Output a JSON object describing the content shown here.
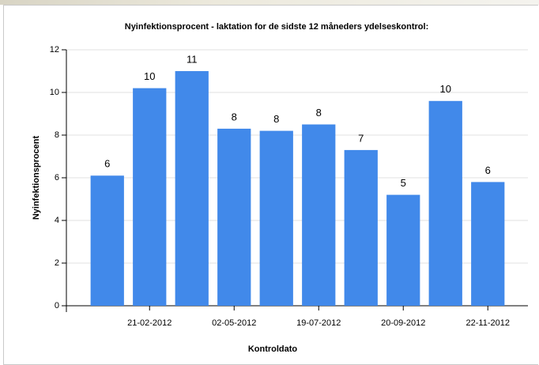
{
  "chart_data": {
    "type": "bar",
    "title": "Nyinfektionsprocent - laktation for de sidste 12 måneders ydelseskontrol:",
    "x_label": "Kontroldato",
    "y_label": "Nyinfektionsprocent",
    "categories": [
      null,
      "21-02-2012",
      null,
      "02-05-2012",
      null,
      "19-07-2012",
      null,
      "20-09-2012",
      null,
      "22-11-2012"
    ],
    "values": [
      6.1,
      10.2,
      11.0,
      8.3,
      8.2,
      8.5,
      7.3,
      5.2,
      9.6,
      5.8
    ],
    "value_labels": [
      "6",
      "10",
      "11",
      "8",
      "8",
      "8",
      "7",
      "5",
      "10",
      "6"
    ],
    "color": "#4189ea",
    "ylim": [
      0,
      12
    ],
    "yticks": [
      0,
      2,
      4,
      6,
      8,
      10,
      12
    ],
    "grid": true
  }
}
